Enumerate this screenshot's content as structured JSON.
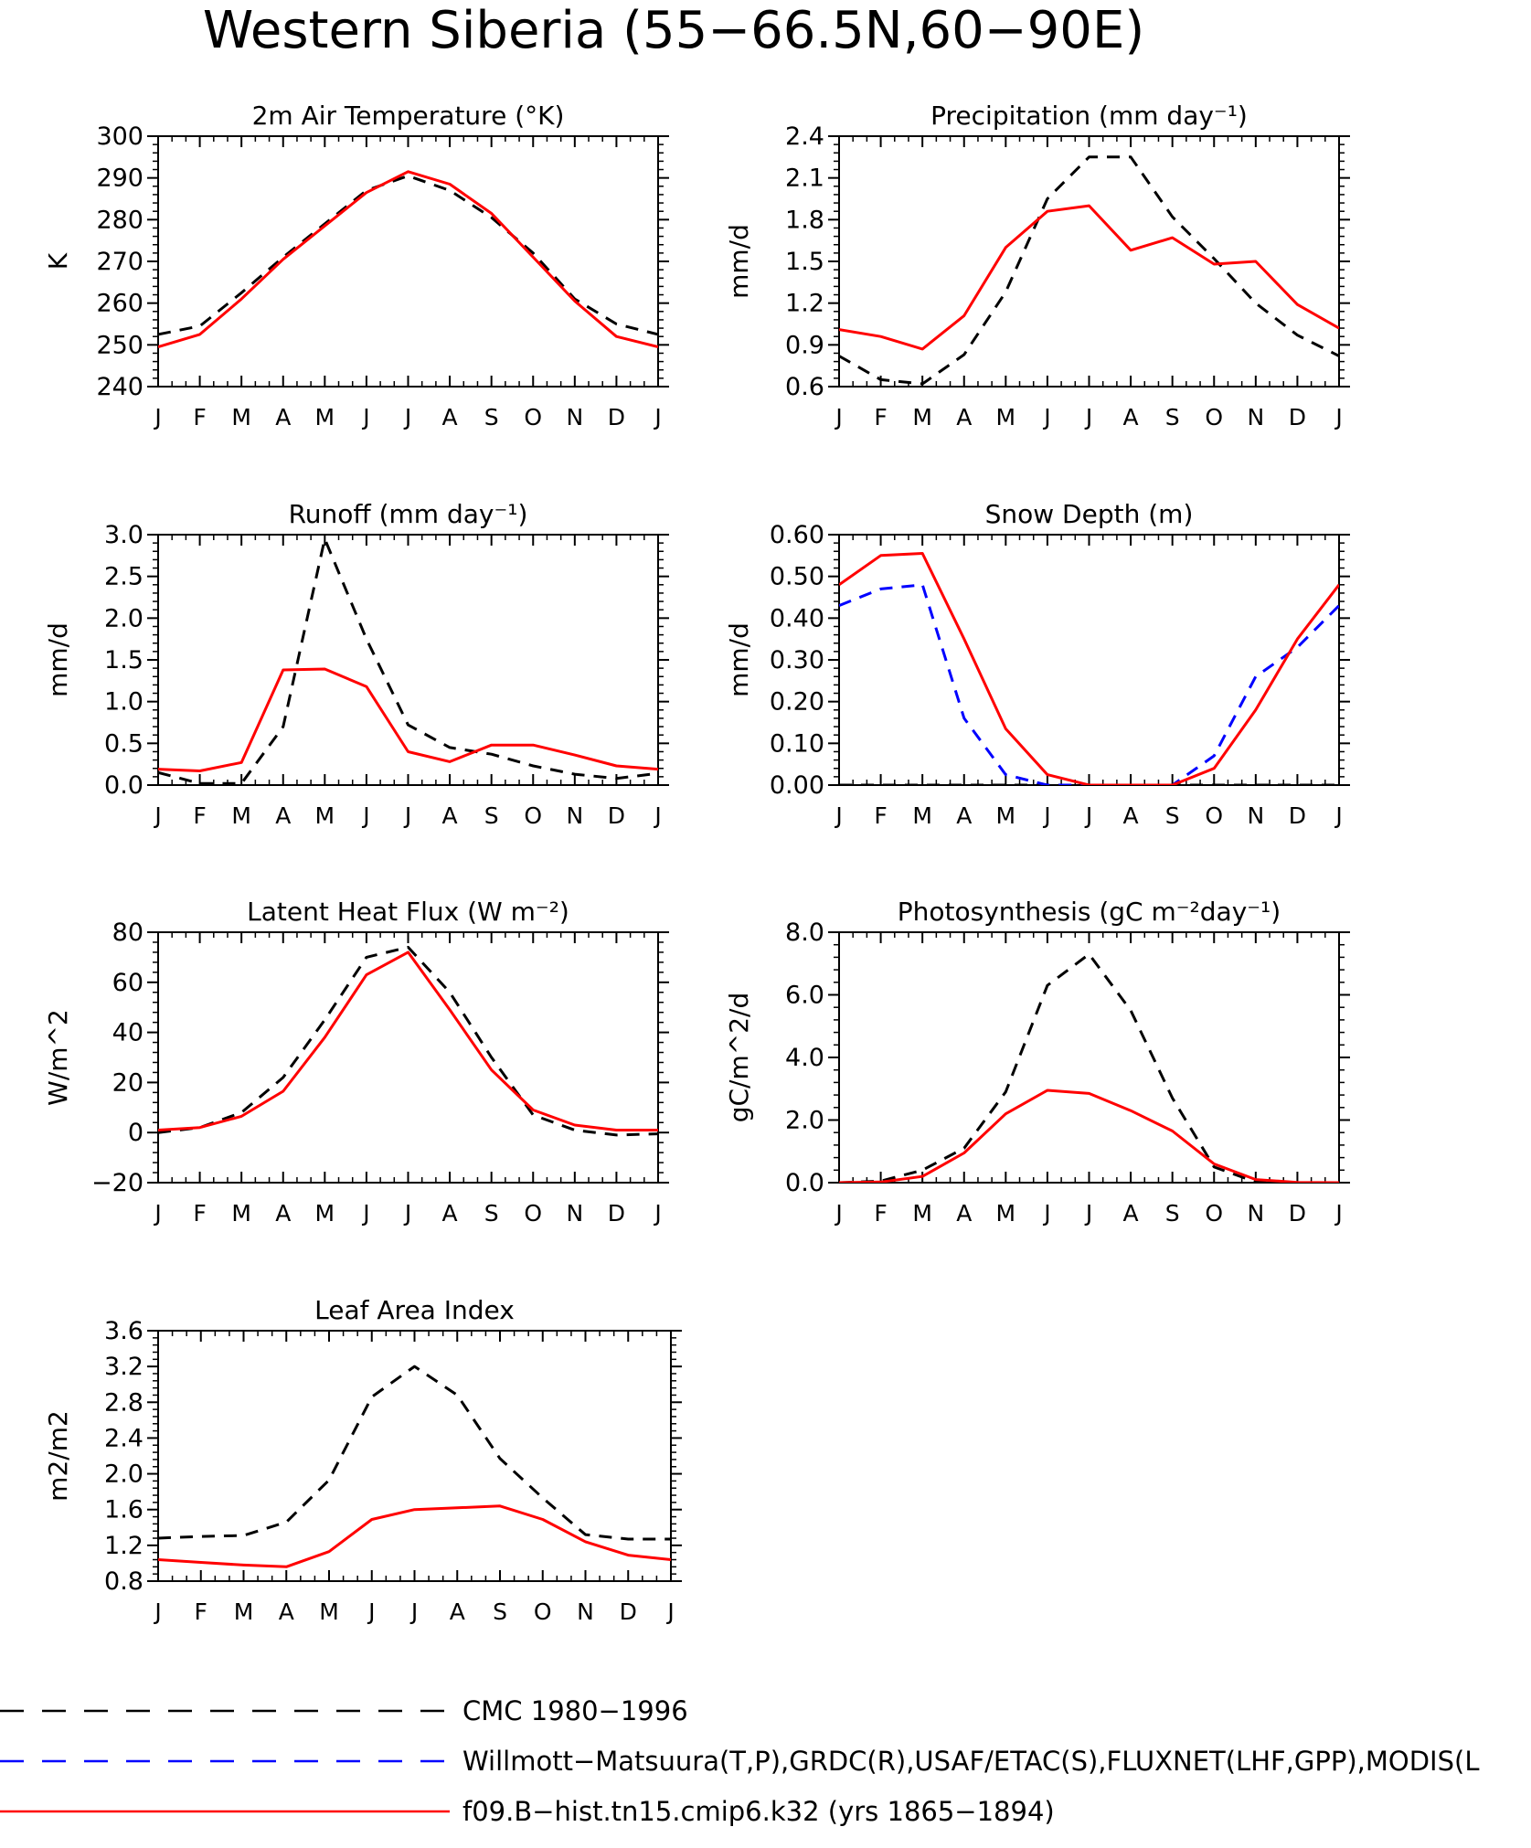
{
  "title": "Western Siberia (55−66.5N,60−90E)",
  "months": [
    "J",
    "F",
    "M",
    "A",
    "M",
    "J",
    "J",
    "A",
    "S",
    "O",
    "N",
    "D",
    "J"
  ],
  "legend": [
    {
      "label": "CMC 1980−1996",
      "color": "#000000",
      "dash": "long"
    },
    {
      "label": "Willmott−Matsuura(T,P),GRDC(R),USAF/ETAC(S),FLUXNET(LHF,GPP),MODIS(L",
      "color": "#0000ff",
      "dash": "long"
    },
    {
      "label": "f09.B−hist.tn15.cmip6.k32 (yrs 1865−1894)",
      "color": "#ff0000",
      "dash": "solid"
    }
  ],
  "chart_data": [
    {
      "type": "line",
      "title": "2m Air Temperature (°K)",
      "ylabel": "K",
      "ylim": [
        240,
        300
      ],
      "yticks": [
        "240",
        "250",
        "260",
        "270",
        "280",
        "290",
        "300"
      ],
      "series": [
        {
          "color": "#000000",
          "dash": true,
          "values": [
            252.5,
            254.5,
            262.5,
            271,
            279,
            287,
            290.5,
            287,
            280.5,
            272,
            261,
            255,
            252.5
          ]
        },
        {
          "color": "#ff0000",
          "dash": false,
          "values": [
            249.5,
            252.5,
            261,
            270.5,
            278.5,
            286.5,
            291.5,
            288.5,
            281.5,
            271,
            260.5,
            252,
            249.5
          ]
        }
      ]
    },
    {
      "type": "line",
      "title": "Precipitation (mm day⁻¹)",
      "ylabel": "mm/d",
      "ylim": [
        0.6,
        2.4
      ],
      "yticks": [
        "0.6",
        "0.9",
        "1.2",
        "1.5",
        "1.8",
        "2.1",
        "2.4"
      ],
      "series": [
        {
          "color": "#000000",
          "dash": true,
          "values": [
            0.82,
            0.65,
            0.62,
            0.83,
            1.28,
            1.95,
            2.25,
            2.25,
            1.82,
            1.52,
            1.2,
            0.97,
            0.82
          ]
        },
        {
          "color": "#ff0000",
          "dash": false,
          "values": [
            1.01,
            0.96,
            0.87,
            1.11,
            1.6,
            1.86,
            1.9,
            1.58,
            1.67,
            1.48,
            1.5,
            1.19,
            1.02
          ]
        }
      ]
    },
    {
      "type": "line",
      "title": "Runoff (mm day⁻¹)",
      "ylabel": "mm/d",
      "ylim": [
        0,
        3
      ],
      "yticks": [
        "0.0",
        "0.5",
        "1.0",
        "1.5",
        "2.0",
        "2.5",
        "3.0"
      ],
      "series": [
        {
          "color": "#000000",
          "dash": true,
          "values": [
            0.15,
            0.02,
            0.02,
            0.7,
            2.95,
            1.75,
            0.72,
            0.45,
            0.37,
            0.23,
            0.13,
            0.08,
            0.14
          ]
        },
        {
          "color": "#ff0000",
          "dash": false,
          "values": [
            0.19,
            0.17,
            0.27,
            1.38,
            1.39,
            1.18,
            0.4,
            0.28,
            0.48,
            0.48,
            0.36,
            0.23,
            0.19
          ]
        }
      ]
    },
    {
      "type": "line",
      "title": "Snow Depth (m)",
      "ylabel": "mm/d",
      "ylim": [
        0,
        0.6
      ],
      "yticks": [
        "0.00",
        "0.10",
        "0.20",
        "0.30",
        "0.40",
        "0.50",
        "0.60"
      ],
      "series": [
        {
          "color": "#000000",
          "dash": true,
          "values": [
            0,
            0,
            0,
            0,
            0,
            0,
            0,
            0,
            0,
            0,
            0,
            0,
            0
          ]
        },
        {
          "color": "#0000ff",
          "dash": true,
          "values": [
            0.43,
            0.47,
            0.48,
            0.16,
            0.025,
            0,
            0,
            0,
            0,
            0.07,
            0.26,
            0.33,
            0.43
          ]
        },
        {
          "color": "#ff0000",
          "dash": false,
          "values": [
            0.48,
            0.55,
            0.555,
            0.35,
            0.135,
            0.025,
            0,
            0,
            0,
            0.04,
            0.18,
            0.35,
            0.48
          ]
        }
      ]
    },
    {
      "type": "line",
      "title": "Latent Heat Flux (W m⁻²)",
      "ylabel": "W/m^2",
      "ylim": [
        -20,
        80
      ],
      "yticks": [
        "−20",
        "0",
        "20",
        "40",
        "60",
        "80"
      ],
      "series": [
        {
          "color": "#000000",
          "dash": true,
          "values": [
            0,
            2,
            8,
            22,
            45,
            70,
            74,
            56,
            30,
            7,
            1,
            -1,
            -0.5
          ]
        },
        {
          "color": "#ff0000",
          "dash": false,
          "values": [
            1,
            2,
            6.5,
            16.5,
            38,
            63,
            72,
            49,
            25,
            9,
            3,
            1,
            1
          ]
        }
      ]
    },
    {
      "type": "line",
      "title": "Photosynthesis (gC m⁻²day⁻¹)",
      "ylabel": "gC/m^2/d",
      "ylim": [
        0,
        8
      ],
      "yticks": [
        "0.0",
        "2.0",
        "4.0",
        "6.0",
        "8.0"
      ],
      "series": [
        {
          "color": "#000000",
          "dash": true,
          "values": [
            0,
            0.05,
            0.4,
            1.1,
            2.9,
            6.3,
            7.3,
            5.5,
            2.7,
            0.5,
            0.02,
            0,
            0
          ]
        },
        {
          "color": "#ff0000",
          "dash": false,
          "values": [
            0,
            0.02,
            0.2,
            0.95,
            2.2,
            2.95,
            2.85,
            2.3,
            1.65,
            0.6,
            0.1,
            0.01,
            0
          ]
        }
      ]
    },
    {
      "type": "line",
      "title": "Leaf Area Index",
      "ylabel": "m2/m2",
      "ylim": [
        0.8,
        3.6
      ],
      "yticks": [
        "0.8",
        "1.2",
        "1.6",
        "2.0",
        "2.4",
        "2.8",
        "3.2",
        "3.6"
      ],
      "series": [
        {
          "color": "#000000",
          "dash": true,
          "values": [
            1.28,
            1.3,
            1.31,
            1.46,
            1.93,
            2.86,
            3.2,
            2.88,
            2.17,
            1.73,
            1.32,
            1.27,
            1.27
          ]
        },
        {
          "color": "#ff0000",
          "dash": false,
          "values": [
            1.04,
            1.01,
            0.98,
            0.96,
            1.13,
            1.49,
            1.6,
            1.62,
            1.64,
            1.49,
            1.24,
            1.09,
            1.04
          ]
        }
      ]
    }
  ]
}
